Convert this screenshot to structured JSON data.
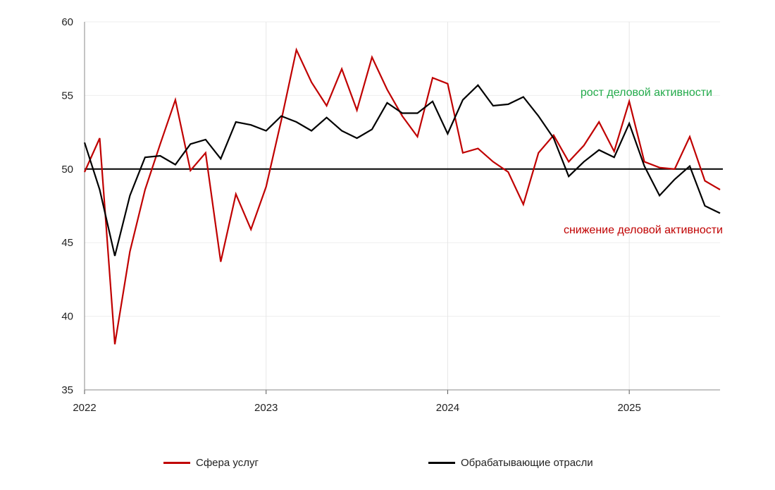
{
  "chart_data": {
    "type": "line",
    "title": "",
    "xlabel": "",
    "ylabel": "",
    "ylim": [
      35,
      60
    ],
    "yticks": [
      35,
      40,
      45,
      50,
      55,
      60
    ],
    "x_ticks": [
      "2022",
      "2023",
      "2024",
      "2025"
    ],
    "reference_line": 50,
    "grid": "light vertical and horizontal",
    "legend_position": "bottom",
    "annotations": {
      "above": "рост деловой активности",
      "below": "снижение деловой активности"
    },
    "months": [
      "2022-01",
      "2022-02",
      "2022-03",
      "2022-04",
      "2022-05",
      "2022-06",
      "2022-07",
      "2022-08",
      "2022-09",
      "2022-10",
      "2022-11",
      "2022-12",
      "2023-01",
      "2023-02",
      "2023-03",
      "2023-04",
      "2023-05",
      "2023-06",
      "2023-07",
      "2023-08",
      "2023-09",
      "2023-10",
      "2023-11",
      "2023-12",
      "2024-01",
      "2024-02",
      "2024-03",
      "2024-04",
      "2024-05",
      "2024-06",
      "2024-07",
      "2024-08",
      "2024-09",
      "2024-10",
      "2024-11",
      "2024-12",
      "2025-01",
      "2025-02",
      "2025-03",
      "2025-04",
      "2025-05",
      "2025-06",
      "2025-07"
    ],
    "series": [
      {
        "name": "Сфера услуг",
        "color": "#c00000",
        "values": [
          49.8,
          52.1,
          38.1,
          44.4,
          48.6,
          51.7,
          54.7,
          49.9,
          51.1,
          43.7,
          48.3,
          45.9,
          48.8,
          53.3,
          58.1,
          55.9,
          54.3,
          56.8,
          54.0,
          57.6,
          55.4,
          53.6,
          52.2,
          56.2,
          55.8,
          51.1,
          51.4,
          50.5,
          49.8,
          47.6,
          51.1,
          52.3,
          50.5,
          51.6,
          53.2,
          51.2,
          54.6,
          50.5,
          50.1,
          50.0,
          52.2,
          49.2,
          48.6
        ]
      },
      {
        "name": "Обрабатывающие отрасли",
        "color": "#000000",
        "values": [
          51.8,
          48.6,
          44.1,
          48.2,
          50.8,
          50.9,
          50.3,
          51.7,
          52.0,
          50.7,
          53.2,
          53.0,
          52.6,
          53.6,
          53.2,
          52.6,
          53.5,
          52.6,
          52.1,
          52.7,
          54.5,
          53.8,
          53.8,
          54.6,
          52.4,
          54.7,
          55.7,
          54.3,
          54.4,
          54.9,
          53.6,
          52.1,
          49.5,
          50.5,
          51.3,
          50.8,
          53.1,
          50.2,
          48.2,
          49.3,
          50.2,
          47.5,
          47.0
        ]
      }
    ]
  }
}
